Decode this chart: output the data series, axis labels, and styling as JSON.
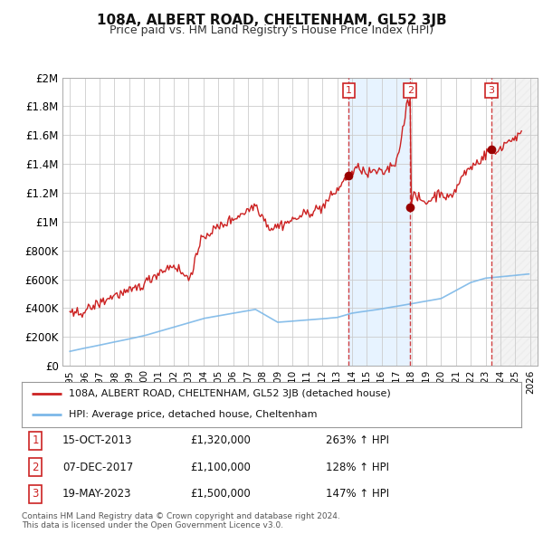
{
  "title": "108A, ALBERT ROAD, CHELTENHAM, GL52 3JB",
  "subtitle": "Price paid vs. HM Land Registry's House Price Index (HPI)",
  "title_fontsize": 11,
  "subtitle_fontsize": 9,
  "background_color": "#ffffff",
  "plot_bg_color": "#ffffff",
  "grid_color": "#cccccc",
  "hpi_line_color": "#7cb8e8",
  "price_line_color": "#cc2222",
  "sale_dot_color": "#990000",
  "shade_color": "#ddeeff",
  "vline_color": "#cc2222",
  "xlim": [
    1994.5,
    2026.5
  ],
  "ylim": [
    0,
    2000000
  ],
  "yticks": [
    0,
    200000,
    400000,
    600000,
    800000,
    1000000,
    1200000,
    1400000,
    1600000,
    1800000,
    2000000
  ],
  "ytick_labels": [
    "£0",
    "£200K",
    "£400K",
    "£600K",
    "£800K",
    "£1M",
    "£1.2M",
    "£1.4M",
    "£1.6M",
    "£1.8M",
    "£2M"
  ],
  "xticks": [
    1995,
    1996,
    1997,
    1998,
    1999,
    2000,
    2001,
    2002,
    2003,
    2004,
    2005,
    2006,
    2007,
    2008,
    2009,
    2010,
    2011,
    2012,
    2013,
    2014,
    2015,
    2016,
    2017,
    2018,
    2019,
    2020,
    2021,
    2022,
    2023,
    2024,
    2025,
    2026
  ],
  "sale_dates": [
    2013.79,
    2017.92,
    2023.38
  ],
  "sale_prices": [
    1320000,
    1100000,
    1500000
  ],
  "sale_labels": [
    "1",
    "2",
    "3"
  ],
  "sale_info": [
    [
      "1",
      "15-OCT-2013",
      "£1,320,000",
      "263% ↑ HPI"
    ],
    [
      "2",
      "07-DEC-2017",
      "£1,100,000",
      "128% ↑ HPI"
    ],
    [
      "3",
      "19-MAY-2023",
      "£1,500,000",
      "147% ↑ HPI"
    ]
  ],
  "legend_line1": "108A, ALBERT ROAD, CHELTENHAM, GL52 3JB (detached house)",
  "legend_line2": "HPI: Average price, detached house, Cheltenham",
  "footer1": "Contains HM Land Registry data © Crown copyright and database right 2024.",
  "footer2": "This data is licensed under the Open Government Licence v3.0."
}
